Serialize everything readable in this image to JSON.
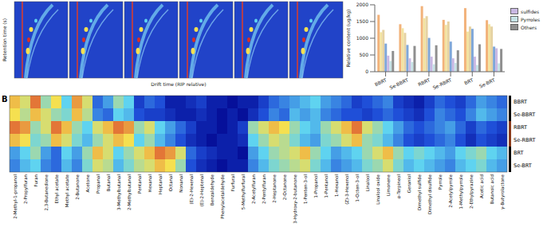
{
  "chart_data": [
    {
      "type": "topographic",
      "x_label": "Drift time (RIP relative)",
      "y_label": "Retention time (s)",
      "panels": 6
    },
    {
      "type": "bar",
      "y_label": "Relative content (ug/kg)",
      "categories": [
        "BBRT",
        "Se-BBRT",
        "RBRT",
        "Se-RBRT",
        "BRT",
        "Se-BRT"
      ],
      "series": [
        {
          "name": null,
          "color": "#f2b27a",
          "values": [
            1700,
            1420,
            1960,
            1550,
            1900,
            1540
          ]
        },
        {
          "name": null,
          "color": "#f3e3a0",
          "values": [
            1180,
            1300,
            1600,
            1400,
            1200,
            1420
          ]
        },
        {
          "name": null,
          "color": "#e6d2a2",
          "values": [
            1250,
            1160,
            1660,
            1500,
            1350,
            1350
          ]
        },
        {
          "name": null,
          "color": "#7fa7d9",
          "values": [
            840,
            800,
            1010,
            900,
            1280,
            750
          ]
        },
        {
          "name": "sulfides",
          "color": "#c9b8e3",
          "values": [
            480,
            400,
            450,
            400,
            450,
            700
          ]
        },
        {
          "name": "Pyrroles",
          "color": "#c6e3e6",
          "values": [
            320,
            290,
            220,
            260,
            200,
            250
          ]
        },
        {
          "name": "Others",
          "color": "#8f8f8f",
          "values": [
            620,
            770,
            790,
            640,
            820,
            680
          ]
        }
      ],
      "ylim": [
        0,
        2000
      ],
      "yticks": [
        0,
        500,
        1000,
        1500,
        2000
      ],
      "legend": "right"
    },
    {
      "type": "heatmap",
      "panel": "B",
      "columns": [
        "2-Methyl-1-propanol",
        "2-Propylfuran",
        "Furan",
        "2,3-Butanedione",
        "Ethyl acetate",
        "Methyl acetate",
        "2-Butanone",
        "Acetone",
        "Propanal",
        "Butanal",
        "3-Methylbutanal",
        "2-Methylbutanal",
        "Pentanal",
        "Hexanal",
        "Heptanal",
        "Octanal",
        "Nonanal",
        "(E)-2-Hexenal",
        "(E)-2-Heptenal",
        "Benzaldehyde",
        "Phenylacetaldehyde",
        "Furfural",
        "5-Methylfurfural",
        "2-Acetylfuran",
        "2-Pentylfuran",
        "2-Heptanone",
        "2-Octanone",
        "3-Hydroxy-2-butanone",
        "1-Penten-3-ol",
        "1-Propanol",
        "1-Pentanol",
        "1-Hexanol",
        "(Z)-3-Hexenol",
        "1-Octen-3-ol",
        "Linalool",
        "Linalool oxide",
        "Limonene",
        "α-Terpineol",
        "Geraniol",
        "Dimethyl sulfide",
        "Dimethyl disulfide",
        "Pyrrole",
        "2-Acetylpyrrole",
        "1-Methylpyrrole",
        "2-Ethylpyrazine",
        "Acetic acid",
        "Butanoic acid",
        "γ-Butyrolactone"
      ],
      "rows": [
        "BBRT",
        "Se-BBRT",
        "RBRT",
        "Se-RBRT",
        "BRT",
        "Se-BRT"
      ],
      "row_colors": [
        "#000000",
        "#000000",
        "#8b3a1a",
        "#8b3a1a",
        "#000000",
        "#000000"
      ],
      "zlim": [
        0,
        1
      ],
      "cells": [
        [
          0.8,
          0.7,
          0.9,
          0.6,
          0.75,
          0.5,
          0.85,
          0.7,
          0.3,
          0.4,
          0.6,
          0.5,
          0.2,
          0.3,
          0.25,
          0.1,
          0.1,
          0.15,
          0.2,
          0.1,
          0.1,
          0.05,
          0.1,
          0.1,
          0.2,
          0.3,
          0.35,
          0.4,
          0.45,
          0.5,
          0.4,
          0.35,
          0.3,
          0.2,
          0.25,
          0.3,
          0.35,
          0.2,
          0.15,
          0.1,
          0.2,
          0.3,
          0.25,
          0.2,
          0.3,
          0.4,
          0.35,
          0.3
        ],
        [
          0.75,
          0.65,
          0.8,
          0.7,
          0.6,
          0.55,
          0.8,
          0.65,
          0.35,
          0.3,
          0.5,
          0.45,
          0.25,
          0.2,
          0.2,
          0.15,
          0.1,
          0.1,
          0.15,
          0.1,
          0.05,
          0.1,
          0.05,
          0.15,
          0.25,
          0.35,
          0.3,
          0.45,
          0.4,
          0.45,
          0.35,
          0.3,
          0.25,
          0.25,
          0.2,
          0.25,
          0.3,
          0.25,
          0.2,
          0.15,
          0.25,
          0.35,
          0.3,
          0.25,
          0.35,
          0.45,
          0.4,
          0.35
        ],
        [
          0.9,
          0.85,
          0.6,
          0.7,
          0.9,
          0.8,
          0.6,
          0.5,
          0.7,
          0.8,
          0.9,
          0.85,
          0.6,
          0.7,
          0.5,
          0.4,
          0.3,
          0.2,
          0.1,
          0.1,
          0.05,
          0.1,
          0.2,
          0.6,
          0.7,
          0.8,
          0.75,
          0.6,
          0.5,
          0.45,
          0.6,
          0.7,
          0.8,
          0.9,
          0.7,
          0.6,
          0.5,
          0.4,
          0.3,
          0.25,
          0.3,
          0.35,
          0.4,
          0.3,
          0.2,
          0.3,
          0.25,
          0.2
        ],
        [
          0.8,
          0.75,
          0.55,
          0.6,
          0.8,
          0.7,
          0.55,
          0.45,
          0.6,
          0.7,
          0.8,
          0.75,
          0.5,
          0.6,
          0.45,
          0.35,
          0.25,
          0.15,
          0.1,
          0.05,
          0.1,
          0.1,
          0.15,
          0.5,
          0.6,
          0.7,
          0.65,
          0.55,
          0.45,
          0.4,
          0.55,
          0.6,
          0.7,
          0.8,
          0.6,
          0.55,
          0.45,
          0.35,
          0.25,
          0.2,
          0.25,
          0.3,
          0.35,
          0.25,
          0.15,
          0.25,
          0.2,
          0.15
        ],
        [
          0.4,
          0.5,
          0.6,
          0.4,
          0.3,
          0.5,
          0.4,
          0.6,
          0.8,
          0.7,
          0.5,
          0.6,
          0.7,
          0.8,
          0.9,
          0.85,
          0.7,
          0.3,
          0.2,
          0.15,
          0.1,
          0.1,
          0.05,
          0.4,
          0.5,
          0.6,
          0.65,
          0.7,
          0.8,
          0.6,
          0.5,
          0.4,
          0.45,
          0.5,
          0.6,
          0.7,
          0.8,
          0.6,
          0.5,
          0.55,
          0.5,
          0.45,
          0.4,
          0.5,
          0.55,
          0.6,
          0.5,
          0.45
        ],
        [
          0.35,
          0.45,
          0.5,
          0.35,
          0.3,
          0.45,
          0.35,
          0.55,
          0.7,
          0.65,
          0.45,
          0.55,
          0.65,
          0.7,
          0.8,
          0.75,
          0.6,
          0.25,
          0.15,
          0.1,
          0.05,
          0.1,
          0.1,
          0.35,
          0.45,
          0.55,
          0.6,
          0.65,
          0.7,
          0.55,
          0.45,
          0.35,
          0.4,
          0.45,
          0.55,
          0.6,
          0.7,
          0.55,
          0.45,
          0.5,
          0.45,
          0.4,
          0.35,
          0.45,
          0.5,
          0.55,
          0.45,
          0.4
        ]
      ]
    }
  ]
}
